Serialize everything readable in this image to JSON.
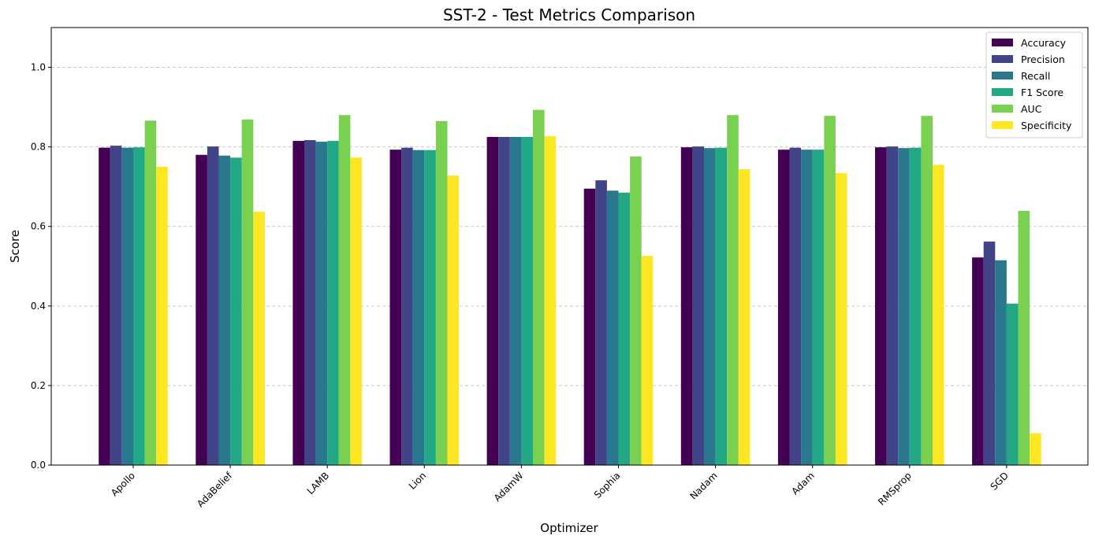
{
  "chart_data": {
    "type": "bar",
    "title": "SST-2 - Test Metrics Comparison",
    "xlabel": "Optimizer",
    "ylabel": "Score",
    "ylim": [
      0,
      1.1
    ],
    "yticks": [
      "0.0",
      "0.2",
      "0.4",
      "0.6",
      "0.8",
      "1.0"
    ],
    "grid": "y-dashed",
    "legend_position": "top-right",
    "categories": [
      "Apollo",
      "AdaBelief",
      "LAMB",
      "Lion",
      "AdamW",
      "Sophia",
      "Nadam",
      "Adam",
      "RMSprop",
      "SGD"
    ],
    "series": [
      {
        "name": "Accuracy",
        "color": "#440154",
        "values": [
          0.798,
          0.78,
          0.815,
          0.793,
          0.825,
          0.695,
          0.799,
          0.793,
          0.799,
          0.522
        ]
      },
      {
        "name": "Precision",
        "color": "#414487",
        "values": [
          0.803,
          0.801,
          0.817,
          0.798,
          0.825,
          0.716,
          0.801,
          0.798,
          0.801,
          0.562
        ]
      },
      {
        "name": "Recall",
        "color": "#2a788e",
        "values": [
          0.798,
          0.778,
          0.813,
          0.792,
          0.825,
          0.69,
          0.797,
          0.793,
          0.797,
          0.515
        ]
      },
      {
        "name": "F1 Score",
        "color": "#22a884",
        "values": [
          0.799,
          0.773,
          0.815,
          0.792,
          0.825,
          0.685,
          0.798,
          0.793,
          0.798,
          0.406
        ]
      },
      {
        "name": "AUC",
        "color": "#7ad151",
        "values": [
          0.866,
          0.869,
          0.88,
          0.865,
          0.893,
          0.776,
          0.88,
          0.878,
          0.878,
          0.639
        ]
      },
      {
        "name": "Specificity",
        "color": "#fde725",
        "values": [
          0.75,
          0.637,
          0.773,
          0.728,
          0.827,
          0.526,
          0.744,
          0.734,
          0.755,
          0.08
        ]
      }
    ]
  }
}
